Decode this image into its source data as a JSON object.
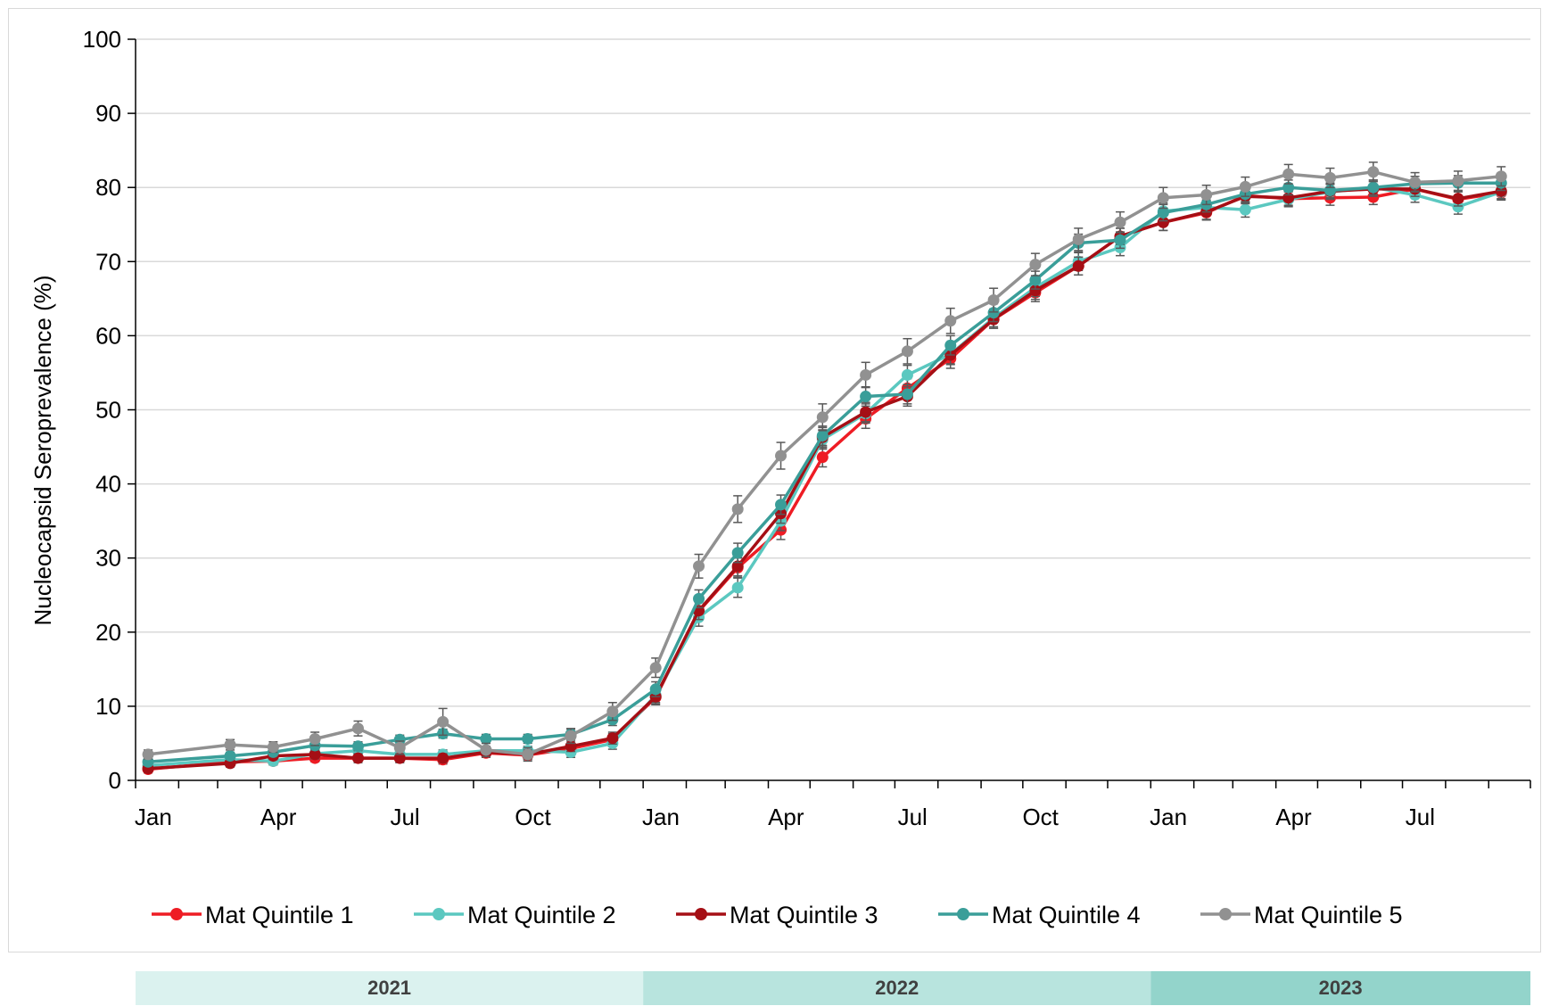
{
  "chart_data": {
    "type": "line",
    "ylabel": "Nucleocapsid Seroprevalence (%)",
    "ylim": [
      0,
      100
    ],
    "yticks": [
      0,
      10,
      20,
      30,
      40,
      50,
      60,
      70,
      80,
      90,
      100
    ],
    "x_range": [
      "2021-01-01",
      "2023-10-01"
    ],
    "x_tick_labels": [
      {
        "date": "2021-01-01",
        "label": "Jan"
      },
      {
        "date": "2021-04-01",
        "label": "Apr"
      },
      {
        "date": "2021-07-01",
        "label": "Jul"
      },
      {
        "date": "2021-10-01",
        "label": "Oct"
      },
      {
        "date": "2022-01-01",
        "label": "Jan"
      },
      {
        "date": "2022-04-01",
        "label": "Apr"
      },
      {
        "date": "2022-07-01",
        "label": "Jul"
      },
      {
        "date": "2022-10-01",
        "label": "Oct"
      },
      {
        "date": "2023-01-01",
        "label": "Jan"
      },
      {
        "date": "2023-04-01",
        "label": "Apr"
      },
      {
        "date": "2023-07-01",
        "label": "Jul"
      }
    ],
    "grid": "horizontal",
    "error_bars": true,
    "legend_position": "bottom",
    "year_bands": [
      {
        "label": "2021",
        "start": "2021-01-01",
        "end": "2022-01-01",
        "color": "#dbf2ef"
      },
      {
        "label": "2022",
        "start": "2022-01-01",
        "end": "2023-01-01",
        "color": "#b8e4de"
      },
      {
        "label": "2023",
        "start": "2023-01-01",
        "end": "2023-10-01",
        "color": "#93d4cb"
      }
    ],
    "series": [
      {
        "name": "Mat Quintile 1",
        "color": "#ee1c24",
        "points": [
          [
            "2021-01-10",
            1.5,
            0.5
          ],
          [
            "2021-03-10",
            2.5,
            0.5
          ],
          [
            "2021-04-10",
            2.6,
            0.5
          ],
          [
            "2021-05-10",
            3.0,
            0.5
          ],
          [
            "2021-06-10",
            3.0,
            0.6
          ],
          [
            "2021-07-10",
            3.0,
            0.6
          ],
          [
            "2021-08-10",
            2.8,
            0.6
          ],
          [
            "2021-09-10",
            3.7,
            0.6
          ],
          [
            "2021-10-10",
            3.4,
            0.6
          ],
          [
            "2021-11-10",
            4.3,
            0.7
          ],
          [
            "2021-12-10",
            5.5,
            0.8
          ],
          [
            "2022-01-10",
            11.2,
            1.0
          ],
          [
            "2022-02-10",
            22.8,
            1.2
          ],
          [
            "2022-03-10",
            28.7,
            1.3
          ],
          [
            "2022-04-10",
            33.8,
            1.3
          ],
          [
            "2022-05-10",
            43.6,
            1.3
          ],
          [
            "2022-06-10",
            48.8,
            1.3
          ],
          [
            "2022-07-10",
            52.9,
            1.3
          ],
          [
            "2022-08-10",
            56.9,
            1.3
          ],
          [
            "2022-09-10",
            62.2,
            1.2
          ],
          [
            "2022-10-10",
            65.8,
            1.2
          ],
          [
            "2022-11-10",
            69.4,
            1.2
          ],
          [
            "2022-12-10",
            73.4,
            1.1
          ],
          [
            "2023-01-10",
            75.3,
            1.1
          ],
          [
            "2023-02-10",
            76.6,
            1.0
          ],
          [
            "2023-03-10",
            78.9,
            1.0
          ],
          [
            "2023-04-10",
            78.5,
            1.0
          ],
          [
            "2023-05-10",
            78.6,
            1.0
          ],
          [
            "2023-06-10",
            78.7,
            1.0
          ],
          [
            "2023-07-10",
            79.8,
            1.0
          ],
          [
            "2023-08-10",
            78.4,
            1.0
          ],
          [
            "2023-09-10",
            79.3,
            1.0
          ]
        ]
      },
      {
        "name": "Mat Quintile 2",
        "color": "#5bc8c0",
        "points": [
          [
            "2021-01-10",
            2.0,
            0.5
          ],
          [
            "2021-03-10",
            2.8,
            0.5
          ],
          [
            "2021-04-10",
            2.6,
            0.5
          ],
          [
            "2021-05-10",
            3.6,
            0.6
          ],
          [
            "2021-06-10",
            4.0,
            0.6
          ],
          [
            "2021-07-10",
            3.5,
            0.6
          ],
          [
            "2021-08-10",
            3.5,
            0.6
          ],
          [
            "2021-09-10",
            4.0,
            0.6
          ],
          [
            "2021-10-10",
            4.0,
            0.6
          ],
          [
            "2021-11-10",
            3.8,
            0.7
          ],
          [
            "2021-12-10",
            5.0,
            0.8
          ],
          [
            "2022-01-10",
            11.5,
            1.0
          ],
          [
            "2022-02-10",
            22.0,
            1.2
          ],
          [
            "2022-03-10",
            26.0,
            1.3
          ],
          [
            "2022-04-10",
            35.0,
            1.3
          ],
          [
            "2022-05-10",
            46.0,
            1.3
          ],
          [
            "2022-06-10",
            49.5,
            1.3
          ],
          [
            "2022-07-10",
            54.7,
            1.3
          ],
          [
            "2022-08-10",
            57.5,
            1.3
          ],
          [
            "2022-09-10",
            62.4,
            1.2
          ],
          [
            "2022-10-10",
            66.5,
            1.2
          ],
          [
            "2022-11-10",
            70.0,
            1.2
          ],
          [
            "2022-12-10",
            71.9,
            1.1
          ],
          [
            "2023-01-10",
            76.8,
            1.1
          ],
          [
            "2023-02-10",
            77.3,
            1.0
          ],
          [
            "2023-03-10",
            77.0,
            1.0
          ],
          [
            "2023-04-10",
            78.4,
            1.0
          ],
          [
            "2023-05-10",
            79.4,
            1.0
          ],
          [
            "2023-06-10",
            80.0,
            1.0
          ],
          [
            "2023-07-10",
            79.0,
            1.0
          ],
          [
            "2023-08-10",
            77.4,
            1.0
          ],
          [
            "2023-09-10",
            79.4,
            1.0
          ]
        ]
      },
      {
        "name": "Mat Quintile 3",
        "color": "#a50f15",
        "points": [
          [
            "2021-01-10",
            1.6,
            0.5
          ],
          [
            "2021-03-10",
            2.3,
            0.5
          ],
          [
            "2021-04-10",
            3.3,
            0.5
          ],
          [
            "2021-05-10",
            3.5,
            0.6
          ],
          [
            "2021-06-10",
            3.0,
            0.6
          ],
          [
            "2021-07-10",
            3.0,
            0.6
          ],
          [
            "2021-08-10",
            3.0,
            0.6
          ],
          [
            "2021-09-10",
            3.8,
            0.6
          ],
          [
            "2021-10-10",
            3.5,
            0.6
          ],
          [
            "2021-11-10",
            4.6,
            0.7
          ],
          [
            "2021-12-10",
            5.7,
            0.8
          ],
          [
            "2022-01-10",
            11.3,
            1.0
          ],
          [
            "2022-02-10",
            22.9,
            1.2
          ],
          [
            "2022-03-10",
            28.9,
            1.3
          ],
          [
            "2022-04-10",
            36.0,
            1.3
          ],
          [
            "2022-05-10",
            46.3,
            1.3
          ],
          [
            "2022-06-10",
            49.7,
            1.3
          ],
          [
            "2022-07-10",
            51.8,
            1.3
          ],
          [
            "2022-08-10",
            57.4,
            1.3
          ],
          [
            "2022-09-10",
            62.2,
            1.2
          ],
          [
            "2022-10-10",
            66.1,
            1.2
          ],
          [
            "2022-11-10",
            69.4,
            1.2
          ],
          [
            "2022-12-10",
            73.4,
            1.1
          ],
          [
            "2023-01-10",
            75.3,
            1.1
          ],
          [
            "2023-02-10",
            76.7,
            1.0
          ],
          [
            "2023-03-10",
            78.8,
            1.0
          ],
          [
            "2023-04-10",
            78.6,
            1.0
          ],
          [
            "2023-05-10",
            79.5,
            1.0
          ],
          [
            "2023-06-10",
            79.8,
            1.0
          ],
          [
            "2023-07-10",
            79.8,
            1.0
          ],
          [
            "2023-08-10",
            78.5,
            1.0
          ],
          [
            "2023-09-10",
            79.5,
            1.0
          ]
        ]
      },
      {
        "name": "Mat Quintile 4",
        "color": "#3a9e99",
        "points": [
          [
            "2021-01-10",
            2.5,
            0.5
          ],
          [
            "2021-03-10",
            3.3,
            0.5
          ],
          [
            "2021-04-10",
            3.8,
            0.5
          ],
          [
            "2021-05-10",
            4.7,
            0.6
          ],
          [
            "2021-06-10",
            4.6,
            0.6
          ],
          [
            "2021-07-10",
            5.5,
            0.6
          ],
          [
            "2021-08-10",
            6.3,
            0.6
          ],
          [
            "2021-09-10",
            5.6,
            0.6
          ],
          [
            "2021-10-10",
            5.6,
            0.6
          ],
          [
            "2021-11-10",
            6.2,
            0.7
          ],
          [
            "2021-12-10",
            8.2,
            0.8
          ],
          [
            "2022-01-10",
            12.3,
            1.0
          ],
          [
            "2022-02-10",
            24.5,
            1.2
          ],
          [
            "2022-03-10",
            30.7,
            1.3
          ],
          [
            "2022-04-10",
            37.2,
            1.3
          ],
          [
            "2022-05-10",
            46.5,
            1.3
          ],
          [
            "2022-06-10",
            51.8,
            1.3
          ],
          [
            "2022-07-10",
            52.1,
            1.3
          ],
          [
            "2022-08-10",
            58.7,
            1.3
          ],
          [
            "2022-09-10",
            63.1,
            1.2
          ],
          [
            "2022-10-10",
            67.5,
            1.2
          ],
          [
            "2022-11-10",
            72.5,
            1.2
          ],
          [
            "2022-12-10",
            72.9,
            1.1
          ],
          [
            "2023-01-10",
            76.6,
            1.1
          ],
          [
            "2023-02-10",
            77.7,
            1.0
          ],
          [
            "2023-03-10",
            79.1,
            1.0
          ],
          [
            "2023-04-10",
            80.0,
            1.0
          ],
          [
            "2023-05-10",
            79.6,
            1.0
          ],
          [
            "2023-06-10",
            80.0,
            1.0
          ],
          [
            "2023-07-10",
            80.5,
            1.0
          ],
          [
            "2023-08-10",
            80.6,
            1.0
          ],
          [
            "2023-09-10",
            80.6,
            1.0
          ]
        ]
      },
      {
        "name": "Mat Quintile 5",
        "color": "#919191",
        "points": [
          [
            "2021-01-10",
            3.5,
            0.6
          ],
          [
            "2021-03-10",
            4.8,
            0.7
          ],
          [
            "2021-04-10",
            4.5,
            0.7
          ],
          [
            "2021-05-10",
            5.6,
            0.9
          ],
          [
            "2021-06-10",
            7.0,
            1.0
          ],
          [
            "2021-07-10",
            4.4,
            0.9
          ],
          [
            "2021-08-10",
            7.9,
            1.8
          ],
          [
            "2021-09-10",
            4.1,
            0.9
          ],
          [
            "2021-10-10",
            3.5,
            0.9
          ],
          [
            "2021-11-10",
            6.0,
            1.0
          ],
          [
            "2021-12-10",
            9.3,
            1.2
          ],
          [
            "2022-01-10",
            15.2,
            1.3
          ],
          [
            "2022-02-10",
            28.9,
            1.6
          ],
          [
            "2022-03-10",
            36.6,
            1.8
          ],
          [
            "2022-04-10",
            43.8,
            1.8
          ],
          [
            "2022-05-10",
            49.0,
            1.8
          ],
          [
            "2022-06-10",
            54.7,
            1.7
          ],
          [
            "2022-07-10",
            57.9,
            1.7
          ],
          [
            "2022-08-10",
            62.0,
            1.7
          ],
          [
            "2022-09-10",
            64.8,
            1.6
          ],
          [
            "2022-10-10",
            69.6,
            1.5
          ],
          [
            "2022-11-10",
            73.0,
            1.5
          ],
          [
            "2022-12-10",
            75.3,
            1.4
          ],
          [
            "2023-01-10",
            78.6,
            1.4
          ],
          [
            "2023-02-10",
            79.0,
            1.3
          ],
          [
            "2023-03-10",
            80.1,
            1.3
          ],
          [
            "2023-04-10",
            81.8,
            1.3
          ],
          [
            "2023-05-10",
            81.3,
            1.3
          ],
          [
            "2023-06-10",
            82.1,
            1.3
          ],
          [
            "2023-07-10",
            80.7,
            1.3
          ],
          [
            "2023-08-10",
            80.9,
            1.3
          ],
          [
            "2023-09-10",
            81.5,
            1.3
          ]
        ]
      }
    ]
  }
}
